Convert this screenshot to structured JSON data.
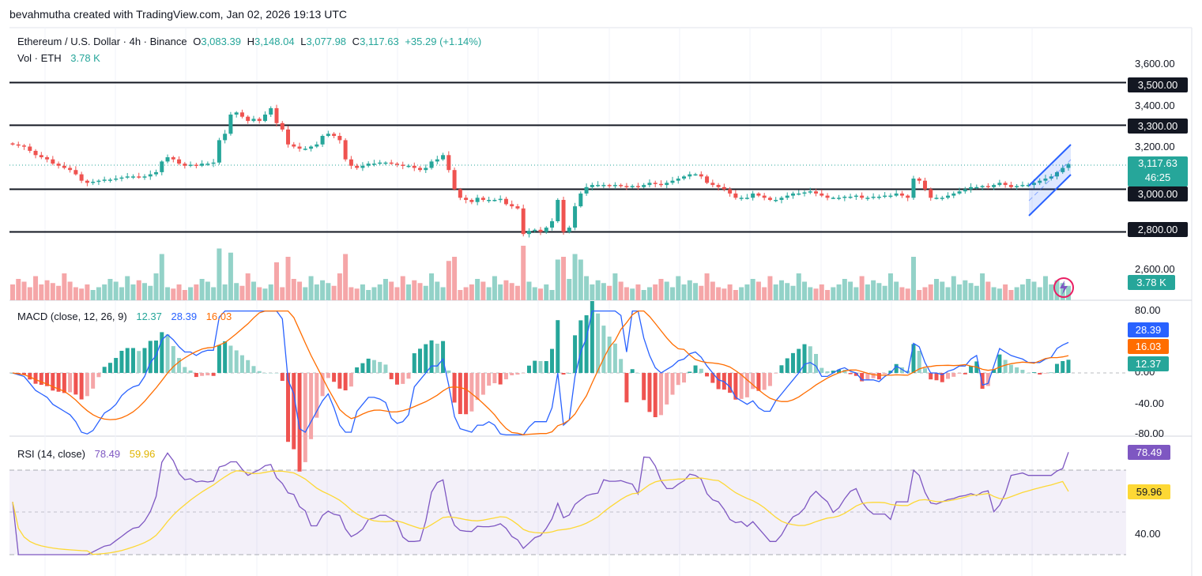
{
  "header": {
    "credit": "bevahmutha created with TradingView.com, Jan 02, 2026 19:13 UTC"
  },
  "symbol": {
    "name": "Ethereum / U.S. Dollar · 4h · Binance",
    "o_label": "O",
    "o_value": "3,083.39",
    "h_label": "H",
    "h_value": "3,148.04",
    "l_label": "L",
    "l_value": "3,077.98",
    "c_label": "C",
    "c_value": "3,117.63",
    "change": "+35.29 (+1.14%)",
    "vol_label": "Vol · ETH",
    "vol_value": "3.78 K"
  },
  "price_axis": {
    "ticks": [
      "3,600.00",
      "3,400.00",
      "3,200.00",
      "2,600.00"
    ],
    "levels": [
      "3,500.00",
      "3,300.00",
      "3,000.00",
      "2,800.00"
    ],
    "last_price": "3,117.63",
    "countdown": "46:25",
    "volume_label": "3.78 K"
  },
  "macd": {
    "title": "MACD (close, 12, 26, 9)",
    "hist": "12.37",
    "macd": "28.39",
    "signal": "16.03",
    "ticks": [
      "80.00",
      "0.00",
      "-40.00",
      "-80.00"
    ]
  },
  "rsi": {
    "title": "RSI (14, close)",
    "value": "78.49",
    "ma": "59.96",
    "ticks": [
      "40.00"
    ]
  },
  "colors": {
    "up": "#26a69a",
    "down": "#ef5350",
    "vol_up": "#93d2c8",
    "vol_down": "#f5a6a8",
    "macd_line": "#2962ff",
    "signal_line": "#ff6d00",
    "rsi_line": "#7e57c2",
    "rsi_ma": "#fdd835",
    "channel": "#2962ff"
  },
  "chart_data": {
    "type": "candlestick",
    "price_closes": [
      3210,
      3205,
      3200,
      3180,
      3160,
      3150,
      3140,
      3120,
      3110,
      3100,
      3090,
      3070,
      3040,
      3030,
      3035,
      3040,
      3045,
      3045,
      3050,
      3055,
      3060,
      3060,
      3055,
      3060,
      3070,
      3080,
      3130,
      3150,
      3140,
      3120,
      3110,
      3115,
      3110,
      3120,
      3120,
      3125,
      3230,
      3260,
      3350,
      3360,
      3340,
      3320,
      3330,
      3320,
      3350,
      3380,
      3310,
      3280,
      3210,
      3200,
      3190,
      3190,
      3200,
      3210,
      3250,
      3260,
      3250,
      3230,
      3140,
      3110,
      3100,
      3110,
      3120,
      3120,
      3125,
      3125,
      3120,
      3115,
      3110,
      3110,
      3100,
      3090,
      3100,
      3130,
      3140,
      3160,
      3090,
      3000,
      2960,
      2950,
      2940,
      2960,
      2950,
      2950,
      2950,
      2955,
      2930,
      2920,
      2910,
      2790,
      2805,
      2810,
      2800,
      2820,
      2850,
      2950,
      2800,
      2820,
      2920,
      2980,
      3010,
      3020,
      3020,
      3020,
      3015,
      3020,
      3015,
      3010,
      3015,
      3010,
      3020,
      3030,
      3025,
      3020,
      3030,
      3040,
      3050,
      3060,
      3070,
      3070,
      3060,
      3030,
      3020,
      3010,
      3000,
      2980,
      2960,
      2960,
      2960,
      2980,
      2970,
      2960,
      2950,
      2950,
      2960,
      2970,
      2980,
      2980,
      2985,
      2990,
      2980,
      2970,
      2960,
      2960,
      2960,
      2965,
      2965,
      2970,
      2960,
      2960,
      2965,
      2965,
      2970,
      2970,
      2980,
      2970,
      2960,
      3050,
      3040,
      3000,
      2960,
      2960,
      2960,
      2970,
      2980,
      2990,
      3000,
      3010,
      3010,
      3015,
      3010,
      3020,
      3030,
      3020,
      3010,
      3015,
      3020,
      3020,
      3030,
      3040,
      3050,
      3060,
      3080,
      3100,
      3117.63
    ],
    "levels": [
      3500,
      3300,
      3000,
      2800
    ],
    "macd": {
      "macd": 28.39,
      "signal": 16.03,
      "histogram": 12.37
    },
    "rsi": {
      "rsi": 78.49,
      "ma": 59.96
    },
    "ylim": [
      2550,
      3650
    ]
  }
}
